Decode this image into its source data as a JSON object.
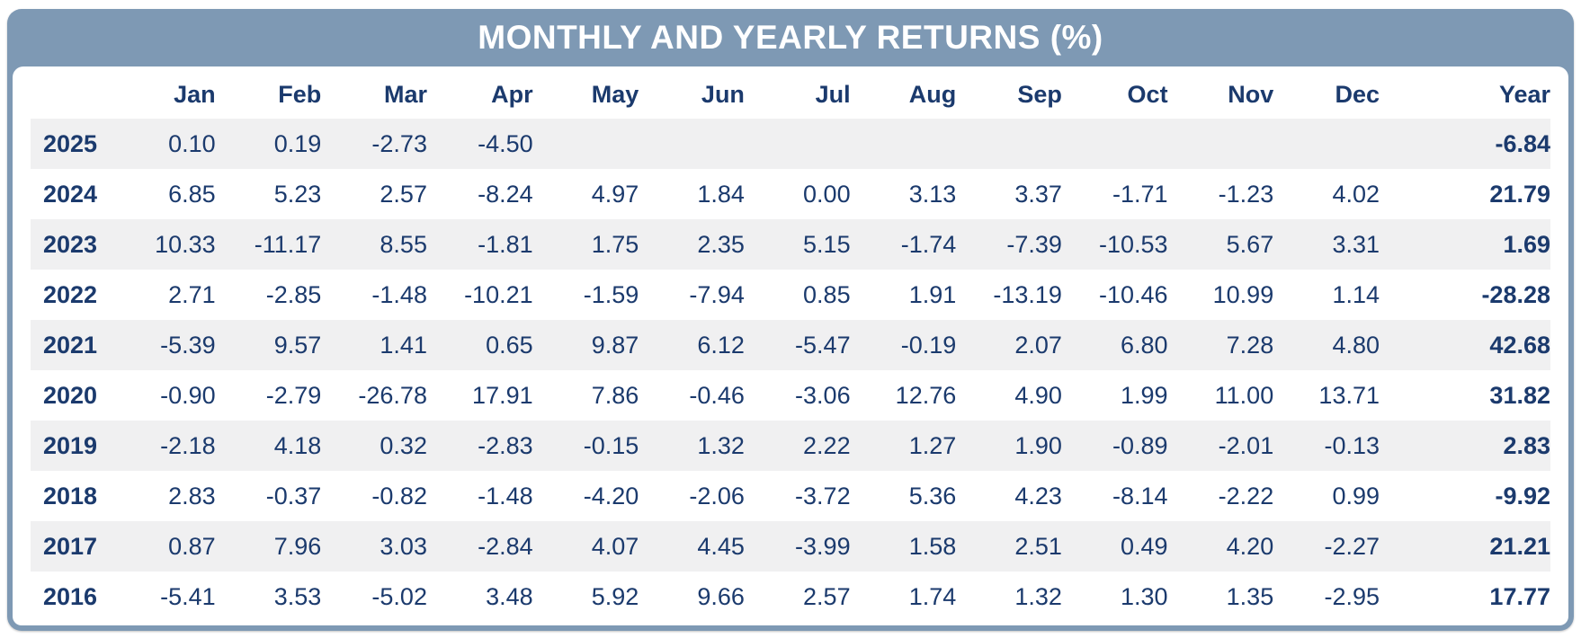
{
  "header": {
    "title": "MONTHLY AND YEARLY RETURNS (%)"
  },
  "colors": {
    "band": "#7e99b4",
    "navy": "#1b3a6d",
    "stripe": "#f0f0f1",
    "card": "#ffffff",
    "title": "#ffffff"
  },
  "chart_data": {
    "type": "table",
    "title": "MONTHLY AND YEARLY RETURNS (%)",
    "row_header_label": "",
    "columns": [
      "Jan",
      "Feb",
      "Mar",
      "Apr",
      "May",
      "Jun",
      "Jul",
      "Aug",
      "Sep",
      "Oct",
      "Nov",
      "Dec",
      "Year"
    ],
    "rows": [
      {
        "year": "2025",
        "values": [
          "0.10",
          "0.19",
          "-2.73",
          "-4.50",
          "",
          "",
          "",
          "",
          "",
          "",
          "",
          "",
          "-6.84"
        ]
      },
      {
        "year": "2024",
        "values": [
          "6.85",
          "5.23",
          "2.57",
          "-8.24",
          "4.97",
          "1.84",
          "0.00",
          "3.13",
          "3.37",
          "-1.71",
          "-1.23",
          "4.02",
          "21.79"
        ]
      },
      {
        "year": "2023",
        "values": [
          "10.33",
          "-11.17",
          "8.55",
          "-1.81",
          "1.75",
          "2.35",
          "5.15",
          "-1.74",
          "-7.39",
          "-10.53",
          "5.67",
          "3.31",
          "1.69"
        ]
      },
      {
        "year": "2022",
        "values": [
          "2.71",
          "-2.85",
          "-1.48",
          "-10.21",
          "-1.59",
          "-7.94",
          "0.85",
          "1.91",
          "-13.19",
          "-10.46",
          "10.99",
          "1.14",
          "-28.28"
        ]
      },
      {
        "year": "2021",
        "values": [
          "-5.39",
          "9.57",
          "1.41",
          "0.65",
          "9.87",
          "6.12",
          "-5.47",
          "-0.19",
          "2.07",
          "6.80",
          "7.28",
          "4.80",
          "42.68"
        ]
      },
      {
        "year": "2020",
        "values": [
          "-0.90",
          "-2.79",
          "-26.78",
          "17.91",
          "7.86",
          "-0.46",
          "-3.06",
          "12.76",
          "4.90",
          "1.99",
          "11.00",
          "13.71",
          "31.82"
        ]
      },
      {
        "year": "2019",
        "values": [
          "-2.18",
          "4.18",
          "0.32",
          "-2.83",
          "-0.15",
          "1.32",
          "2.22",
          "1.27",
          "1.90",
          "-0.89",
          "-2.01",
          "-0.13",
          "2.83"
        ]
      },
      {
        "year": "2018",
        "values": [
          "2.83",
          "-0.37",
          "-0.82",
          "-1.48",
          "-4.20",
          "-2.06",
          "-3.72",
          "5.36",
          "4.23",
          "-8.14",
          "-2.22",
          "0.99",
          "-9.92"
        ]
      },
      {
        "year": "2017",
        "values": [
          "0.87",
          "7.96",
          "3.03",
          "-2.84",
          "4.07",
          "4.45",
          "-3.99",
          "1.58",
          "2.51",
          "0.49",
          "4.20",
          "-2.27",
          "21.21"
        ]
      },
      {
        "year": "2016",
        "values": [
          "-5.41",
          "3.53",
          "-5.02",
          "3.48",
          "5.92",
          "9.66",
          "2.57",
          "1.74",
          "1.32",
          "1.30",
          "1.35",
          "-2.95",
          "17.77"
        ]
      }
    ]
  }
}
